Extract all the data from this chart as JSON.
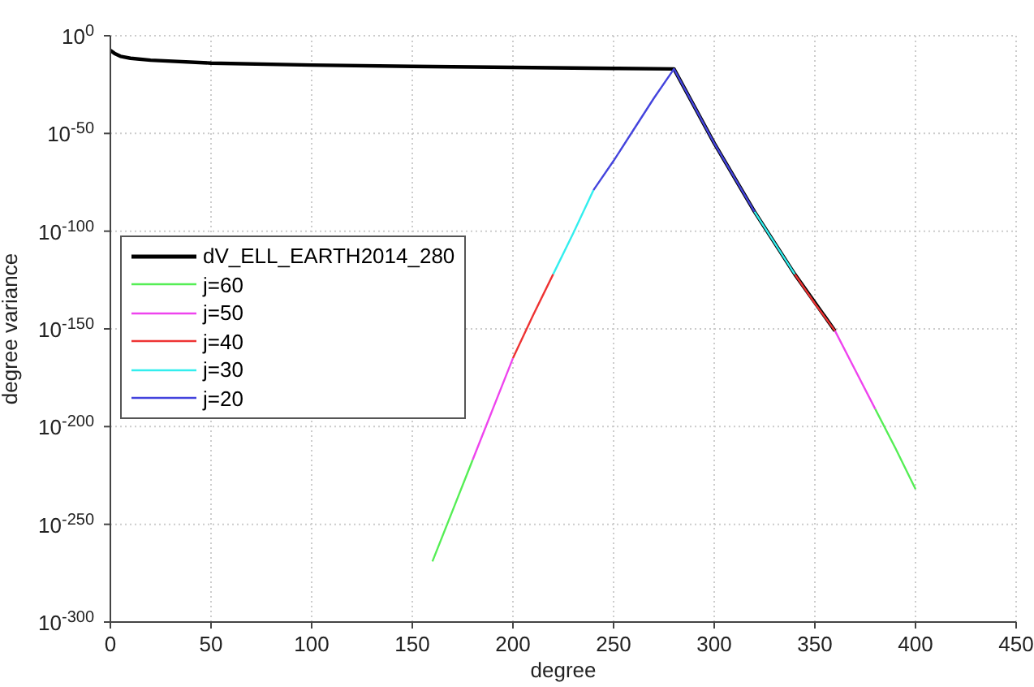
{
  "chart_data": {
    "type": "line",
    "xlabel": "degree",
    "ylabel": "degree variance",
    "log": "y",
    "grid": true,
    "legend": "left",
    "line_style": "solid",
    "marker": "none",
    "xlim": [
      0,
      450
    ],
    "xticks": [
      0,
      50,
      100,
      150,
      200,
      250,
      300,
      350,
      400,
      450
    ],
    "ylim": [
      1e-300,
      1
    ],
    "yticks": [
      {
        "value": 1,
        "label": "10$^{0}$"
      },
      {
        "value": 1e-50,
        "label": "10$^{-50}$"
      },
      {
        "value": 1e-100,
        "label": "10$^{-100}$"
      },
      {
        "value": 1e-150,
        "label": "10$^{-150}$"
      },
      {
        "value": 1e-200,
        "label": "10$^{-200}$"
      },
      {
        "value": 1e-250,
        "label": "10$^{-250}$"
      },
      {
        "value": 1e-300,
        "label": "10$^{-300}$"
      }
    ],
    "series": [
      {
        "name": "dV_ELL_EARTH2014_280",
        "color": "#000000",
        "x": [
          0,
          2,
          5,
          10,
          20,
          50,
          100,
          150,
          200,
          250,
          280,
          300,
          320,
          340,
          360
        ],
        "values": [
          3e-08,
          1e-09,
          3e-11,
          3e-12,
          3e-13,
          1e-14,
          1e-15,
          2e-16,
          6e-17,
          2e-17,
          1e-17,
          1e-55,
          1e-90,
          1e-122,
          1e-151
        ]
      },
      {
        "name": "j=60",
        "color": "#55ee55",
        "x": [
          160,
          170,
          180,
          280,
          380,
          390,
          400
        ],
        "values": [
          1e-269,
          1e-243,
          1e-217,
          null,
          1e-191,
          1e-211,
          1e-232
        ]
      },
      {
        "name": "j=50",
        "color": "#ee44ee",
        "x": [
          180,
          190,
          200,
          280,
          360,
          370,
          380
        ],
        "values": [
          1e-217,
          1e-191,
          1e-165,
          null,
          1e-151,
          1e-171,
          1e-191
        ]
      },
      {
        "name": "j=40",
        "color": "#ee3333",
        "x": [
          200,
          210,
          220,
          280,
          340,
          350,
          360
        ],
        "values": [
          1e-165,
          1e-143,
          1e-122,
          null,
          1e-122,
          1e-137,
          1e-151
        ]
      },
      {
        "name": "j=30",
        "color": "#33eeee",
        "x": [
          220,
          230,
          240,
          280,
          320,
          330,
          340
        ],
        "values": [
          1e-122,
          1e-101,
          1e-79,
          null,
          1e-90,
          1e-106,
          1e-122
        ]
      },
      {
        "name": "j=20",
        "color": "#4444dd",
        "x": [
          240,
          250,
          260,
          270,
          280,
          300,
          320
        ],
        "values": [
          1e-79,
          1e-64,
          1e-48,
          1e-32,
          1e-17,
          1e-55,
          1e-90
        ]
      }
    ]
  }
}
